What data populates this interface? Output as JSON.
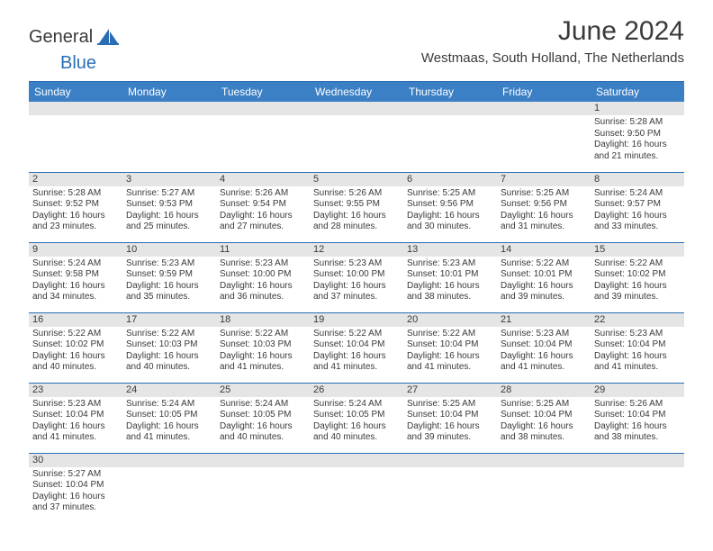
{
  "logo": {
    "part1": "General",
    "part2": "Blue"
  },
  "title": "June 2024",
  "location": "Westmaas, South Holland, The Netherlands",
  "colors": {
    "header_bg": "#3b7fc4",
    "header_text": "#ffffff",
    "daynum_bg": "#e5e5e5",
    "border": "#2a6db5",
    "text": "#3a3a3a",
    "logo_accent": "#2a6db5"
  },
  "weekdays": [
    "Sunday",
    "Monday",
    "Tuesday",
    "Wednesday",
    "Thursday",
    "Friday",
    "Saturday"
  ],
  "weeks": [
    [
      null,
      null,
      null,
      null,
      null,
      null,
      {
        "n": "1",
        "sr": "5:28 AM",
        "ss": "9:50 PM",
        "dl": "16 hours and 21 minutes."
      }
    ],
    [
      {
        "n": "2",
        "sr": "5:28 AM",
        "ss": "9:52 PM",
        "dl": "16 hours and 23 minutes."
      },
      {
        "n": "3",
        "sr": "5:27 AM",
        "ss": "9:53 PM",
        "dl": "16 hours and 25 minutes."
      },
      {
        "n": "4",
        "sr": "5:26 AM",
        "ss": "9:54 PM",
        "dl": "16 hours and 27 minutes."
      },
      {
        "n": "5",
        "sr": "5:26 AM",
        "ss": "9:55 PM",
        "dl": "16 hours and 28 minutes."
      },
      {
        "n": "6",
        "sr": "5:25 AM",
        "ss": "9:56 PM",
        "dl": "16 hours and 30 minutes."
      },
      {
        "n": "7",
        "sr": "5:25 AM",
        "ss": "9:56 PM",
        "dl": "16 hours and 31 minutes."
      },
      {
        "n": "8",
        "sr": "5:24 AM",
        "ss": "9:57 PM",
        "dl": "16 hours and 33 minutes."
      }
    ],
    [
      {
        "n": "9",
        "sr": "5:24 AM",
        "ss": "9:58 PM",
        "dl": "16 hours and 34 minutes."
      },
      {
        "n": "10",
        "sr": "5:23 AM",
        "ss": "9:59 PM",
        "dl": "16 hours and 35 minutes."
      },
      {
        "n": "11",
        "sr": "5:23 AM",
        "ss": "10:00 PM",
        "dl": "16 hours and 36 minutes."
      },
      {
        "n": "12",
        "sr": "5:23 AM",
        "ss": "10:00 PM",
        "dl": "16 hours and 37 minutes."
      },
      {
        "n": "13",
        "sr": "5:23 AM",
        "ss": "10:01 PM",
        "dl": "16 hours and 38 minutes."
      },
      {
        "n": "14",
        "sr": "5:22 AM",
        "ss": "10:01 PM",
        "dl": "16 hours and 39 minutes."
      },
      {
        "n": "15",
        "sr": "5:22 AM",
        "ss": "10:02 PM",
        "dl": "16 hours and 39 minutes."
      }
    ],
    [
      {
        "n": "16",
        "sr": "5:22 AM",
        "ss": "10:02 PM",
        "dl": "16 hours and 40 minutes."
      },
      {
        "n": "17",
        "sr": "5:22 AM",
        "ss": "10:03 PM",
        "dl": "16 hours and 40 minutes."
      },
      {
        "n": "18",
        "sr": "5:22 AM",
        "ss": "10:03 PM",
        "dl": "16 hours and 41 minutes."
      },
      {
        "n": "19",
        "sr": "5:22 AM",
        "ss": "10:04 PM",
        "dl": "16 hours and 41 minutes."
      },
      {
        "n": "20",
        "sr": "5:22 AM",
        "ss": "10:04 PM",
        "dl": "16 hours and 41 minutes."
      },
      {
        "n": "21",
        "sr": "5:23 AM",
        "ss": "10:04 PM",
        "dl": "16 hours and 41 minutes."
      },
      {
        "n": "22",
        "sr": "5:23 AM",
        "ss": "10:04 PM",
        "dl": "16 hours and 41 minutes."
      }
    ],
    [
      {
        "n": "23",
        "sr": "5:23 AM",
        "ss": "10:04 PM",
        "dl": "16 hours and 41 minutes."
      },
      {
        "n": "24",
        "sr": "5:24 AM",
        "ss": "10:05 PM",
        "dl": "16 hours and 41 minutes."
      },
      {
        "n": "25",
        "sr": "5:24 AM",
        "ss": "10:05 PM",
        "dl": "16 hours and 40 minutes."
      },
      {
        "n": "26",
        "sr": "5:24 AM",
        "ss": "10:05 PM",
        "dl": "16 hours and 40 minutes."
      },
      {
        "n": "27",
        "sr": "5:25 AM",
        "ss": "10:04 PM",
        "dl": "16 hours and 39 minutes."
      },
      {
        "n": "28",
        "sr": "5:25 AM",
        "ss": "10:04 PM",
        "dl": "16 hours and 38 minutes."
      },
      {
        "n": "29",
        "sr": "5:26 AM",
        "ss": "10:04 PM",
        "dl": "16 hours and 38 minutes."
      }
    ],
    [
      {
        "n": "30",
        "sr": "5:27 AM",
        "ss": "10:04 PM",
        "dl": "16 hours and 37 minutes."
      },
      null,
      null,
      null,
      null,
      null,
      null
    ]
  ],
  "labels": {
    "sunrise": "Sunrise:",
    "sunset": "Sunset:",
    "daylight": "Daylight:"
  }
}
